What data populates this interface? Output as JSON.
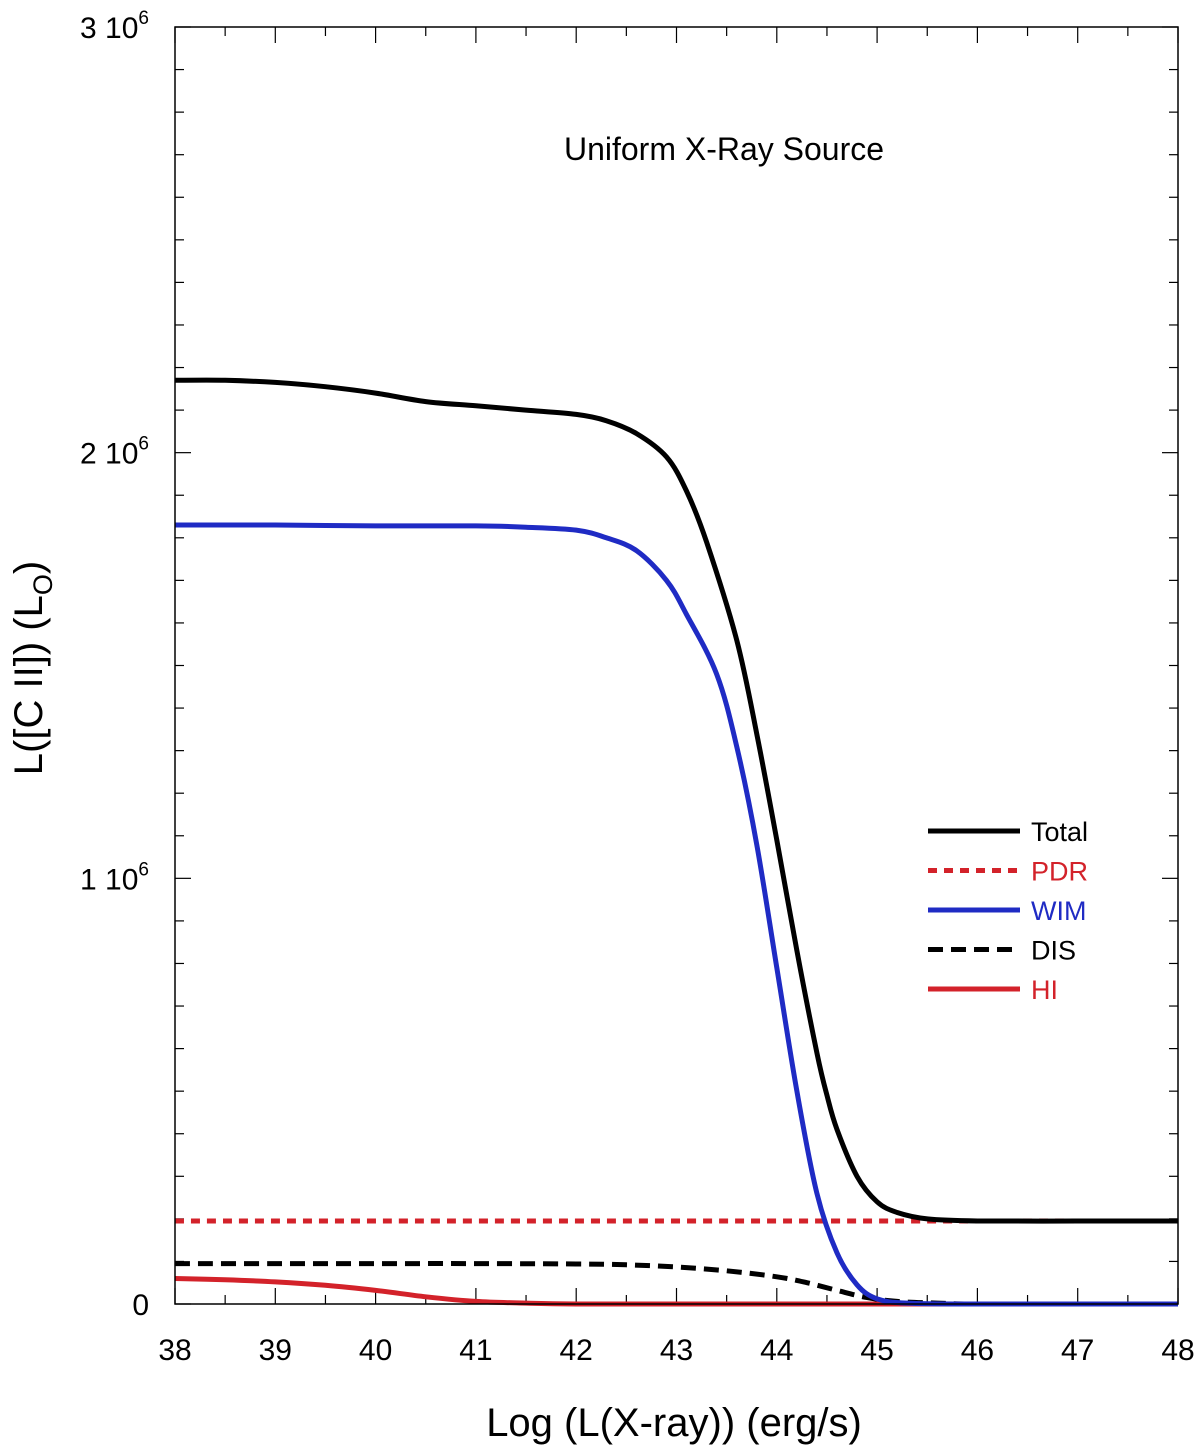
{
  "chart_data": {
    "type": "line",
    "title": "",
    "annotation": "Uniform X-Ray Source",
    "xlabel": "Log (L(X-ray)) (erg/s)",
    "ylabel": {
      "prefix": "L([C II]) (L",
      "subscript": "O",
      "suffix": ")"
    },
    "xlim": [
      38,
      48
    ],
    "ylim": [
      0,
      3000000
    ],
    "x_ticks": [
      38,
      39,
      40,
      41,
      42,
      43,
      44,
      45,
      46,
      47,
      48
    ],
    "y_ticks": [
      {
        "value": 0,
        "mantissa": "0",
        "exponent": ""
      },
      {
        "value": 1000000,
        "mantissa": "1 10",
        "exponent": "6"
      },
      {
        "value": 2000000,
        "mantissa": "2 10",
        "exponent": "6"
      },
      {
        "value": 3000000,
        "mantissa": "3 10",
        "exponent": "6"
      }
    ],
    "y_minor_step": 100000,
    "x_minor_step": 0.5,
    "grid": false,
    "legend_position": "right",
    "series": [
      {
        "name": "Total",
        "color": "#000000",
        "dash": "solid",
        "x": [
          38,
          38.5,
          39,
          39.5,
          40,
          40.5,
          41,
          41.5,
          42,
          42.3,
          42.6,
          42.9,
          43.1,
          43.3,
          43.6,
          43.8,
          44.0,
          44.2,
          44.4,
          44.5,
          44.6,
          44.8,
          45.0,
          45.2,
          45.5,
          46,
          47,
          48
        ],
        "y": [
          2170000,
          2170000,
          2165000,
          2155000,
          2140000,
          2120000,
          2110000,
          2100000,
          2090000,
          2075000,
          2045000,
          1990000,
          1910000,
          1790000,
          1560000,
          1340000,
          1090000,
          830000,
          590000,
          490000,
          410000,
          300000,
          240000,
          215000,
          200000,
          195000,
          195000,
          195000
        ]
      },
      {
        "name": "PDR",
        "color": "#d3222a",
        "dash": "dotted",
        "x": [
          38,
          48
        ],
        "y": [
          195000,
          195000
        ]
      },
      {
        "name": "WIM",
        "color": "#1f2bc4",
        "dash": "solid",
        "x": [
          38,
          39,
          40,
          41,
          41.5,
          42,
          42.3,
          42.6,
          42.9,
          43.1,
          43.4,
          43.6,
          43.8,
          44.0,
          44.2,
          44.4,
          44.6,
          44.8,
          45.0,
          45.3,
          46,
          47,
          48
        ],
        "y": [
          1830000,
          1830000,
          1828000,
          1828000,
          1825000,
          1818000,
          1800000,
          1770000,
          1700000,
          1620000,
          1480000,
          1310000,
          1080000,
          790000,
          500000,
          260000,
          120000,
          45000,
          12000,
          2000,
          0,
          0,
          0
        ]
      },
      {
        "name": "DIS",
        "color": "#000000",
        "dash": "dashed",
        "x": [
          38,
          39,
          40,
          41,
          42,
          42.5,
          43,
          43.5,
          44,
          44.3,
          44.6,
          44.9,
          45.2,
          45.6,
          46,
          47,
          48
        ],
        "y": [
          95000,
          95000,
          95000,
          95000,
          94000,
          92000,
          87000,
          78000,
          64000,
          50000,
          32000,
          15000,
          6000,
          2000,
          0,
          0,
          0
        ]
      },
      {
        "name": "HI",
        "color": "#d3222a",
        "dash": "solid",
        "x": [
          38,
          38.5,
          39,
          39.5,
          40,
          40.5,
          41,
          41.5,
          42,
          43,
          44,
          45,
          46,
          47,
          48
        ],
        "y": [
          60000,
          57000,
          52000,
          44000,
          32000,
          17000,
          6000,
          2000,
          0,
          0,
          0,
          0,
          0,
          0,
          0
        ]
      }
    ]
  }
}
